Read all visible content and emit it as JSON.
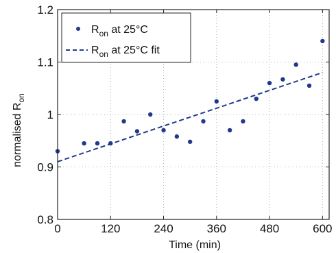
{
  "chart_data": {
    "type": "scatter",
    "title": "",
    "xlabel": "Time (min)",
    "ylabel_main": "normalised R",
    "ylabel_sub": "on",
    "xlim": [
      0,
      615
    ],
    "ylim": [
      0.8,
      1.2
    ],
    "xticks": [
      0,
      120,
      240,
      360,
      480,
      600
    ],
    "yticks": [
      0.8,
      0.9,
      1,
      1.1,
      1.2
    ],
    "ytick_labels": [
      "0.8",
      "0.9",
      "1",
      "1.1",
      "1.2"
    ],
    "grid": true,
    "legend_position": "top-left",
    "series": [
      {
        "name_main": "R",
        "name_sub": "on",
        "name_suffix": " at 25°C",
        "marker": "dot",
        "color": "#1f3a8a",
        "x": [
          0,
          60,
          90,
          120,
          150,
          180,
          210,
          240,
          270,
          300,
          330,
          360,
          390,
          420,
          450,
          480,
          510,
          540,
          570,
          600
        ],
        "y": [
          0.93,
          0.945,
          0.945,
          0.945,
          0.987,
          0.968,
          1.0,
          0.97,
          0.958,
          0.948,
          0.987,
          1.025,
          0.97,
          0.987,
          1.03,
          1.06,
          1.067,
          1.095,
          1.055,
          1.14
        ]
      },
      {
        "name_main": "R",
        "name_sub": "on",
        "name_suffix": " at 25°C fit",
        "style": "dashed",
        "color": "#1f3a8a",
        "x": [
          0,
          600
        ],
        "y": [
          0.91,
          1.08
        ]
      }
    ]
  }
}
